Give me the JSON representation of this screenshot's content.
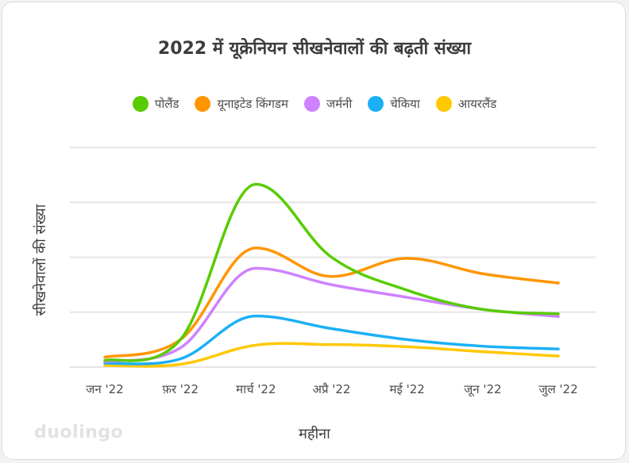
{
  "chart_data": {
    "type": "line",
    "title": "2022 में यूक्रेनियन सीखनेवालों की बढ़ती संख्या",
    "xlabel": "महीना",
    "ylabel": "सीखनेवालों की संख्या",
    "categories": [
      "जन '22",
      "फ़र '22",
      "मार्च '22",
      "अप्रै '22",
      "मई '22",
      "जून '22",
      "जुल '22"
    ],
    "ylim": [
      0,
      4
    ],
    "grid": true,
    "legend_position": "top",
    "series": [
      {
        "name": "पोलैंड",
        "color": "#58cc02",
        "values": [
          0.12,
          0.5,
          3.33,
          2.0,
          1.4,
          1.05,
          0.97
        ]
      },
      {
        "name": "यूनाइटेड किंगडम",
        "color": "#ff9600",
        "values": [
          0.18,
          0.5,
          2.17,
          1.65,
          1.98,
          1.7,
          1.53
        ]
      },
      {
        "name": "जर्मनी",
        "color": "#ce82ff",
        "values": [
          0.1,
          0.35,
          1.8,
          1.5,
          1.27,
          1.05,
          0.92
        ]
      },
      {
        "name": "चेकिया",
        "color": "#1cb0f6",
        "values": [
          0.07,
          0.15,
          0.93,
          0.7,
          0.5,
          0.38,
          0.33
        ]
      },
      {
        "name": "आयरलैंड",
        "color": "#ffc800",
        "values": [
          0.03,
          0.05,
          0.4,
          0.41,
          0.37,
          0.28,
          0.2
        ]
      }
    ]
  },
  "brand": "duolingo"
}
